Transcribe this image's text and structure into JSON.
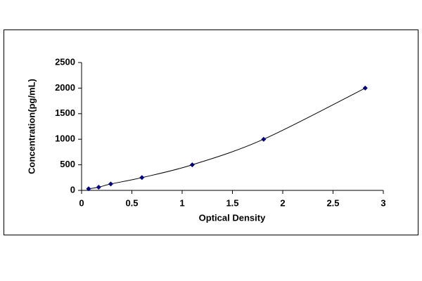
{
  "chart_data": {
    "type": "line",
    "marker": "diamond",
    "x_label": "Optical Density",
    "y_label": "Concentration(pg/mL)",
    "series": [
      {
        "color": "#000080",
        "line_color": "#000000",
        "x": [
          0.07,
          0.17,
          0.29,
          0.6,
          1.1,
          1.81,
          2.82
        ],
        "values": [
          31.25,
          62.5,
          125,
          250,
          500,
          1000,
          2000
        ]
      }
    ],
    "xlim": [
      0,
      3
    ],
    "xticks": [
      0,
      0.5,
      1,
      1.5,
      2,
      2.5,
      3
    ],
    "ylim": [
      0,
      2500
    ],
    "yticks": [
      0,
      500,
      1000,
      1500,
      2000,
      2500
    ]
  }
}
